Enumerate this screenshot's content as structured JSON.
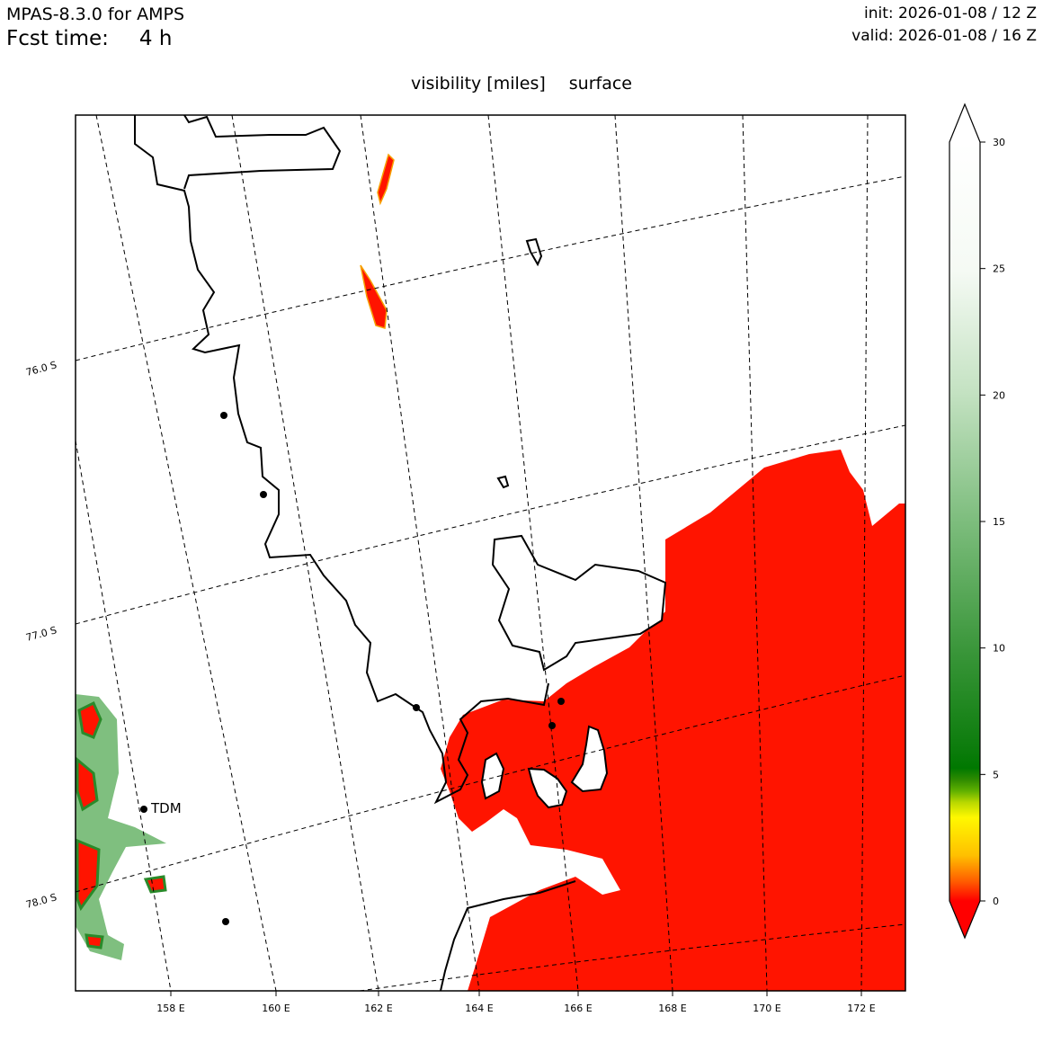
{
  "header": {
    "model": "MPAS-8.3.0 for AMPS",
    "fcst_label": "Fcst time:",
    "fcst_value": "4 h",
    "init": "init: 2026-01-08 / 12 Z",
    "valid": "valid: 2026-01-08 / 16 Z"
  },
  "map": {
    "variable": "visibility [miles]",
    "level": "surface",
    "lat_labels": [
      "76.0 S",
      "77.0 S",
      "78.0 S"
    ],
    "lon_labels": [
      "158 E",
      "160 E",
      "162 E",
      "164 E",
      "166 E",
      "168 E",
      "170 E",
      "172 E"
    ],
    "station_label": "TDM",
    "colors": {
      "low_vis": "#ff1400",
      "coast": "#000000"
    }
  },
  "colorbar": {
    "ticks": [
      "0",
      "5",
      "10",
      "15",
      "20",
      "25",
      "30"
    ],
    "range": [
      0,
      30
    ],
    "colors": {
      "min": "#ff0000",
      "mid": "#007800",
      "max": "#ffffff"
    }
  }
}
